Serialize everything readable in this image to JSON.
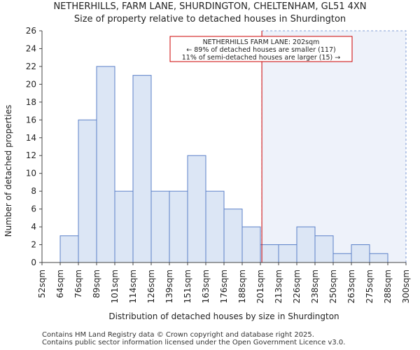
{
  "chart_data": {
    "type": "bar",
    "title": "NETHERHILLS, FARM LANE, SHURDINGTON, CHELTENHAM, GL51 4XN",
    "subtitle": "Size of property relative to detached houses in Shurdington",
    "xlabel": "Distribution of detached houses by size in Shurdington",
    "ylabel": "Number of detached properties",
    "x_tick_labels": [
      "52sqm",
      "64sqm",
      "76sqm",
      "89sqm",
      "101sqm",
      "114sqm",
      "126sqm",
      "139sqm",
      "151sqm",
      "163sqm",
      "176sqm",
      "188sqm",
      "201sqm",
      "213sqm",
      "226sqm",
      "238sqm",
      "250sqm",
      "263sqm",
      "275sqm",
      "288sqm",
      "300sqm"
    ],
    "values": [
      0,
      3,
      16,
      22,
      8,
      21,
      8,
      8,
      12,
      8,
      6,
      4,
      2,
      2,
      4,
      3,
      1,
      2,
      1,
      0
    ],
    "ylim": [
      0,
      26
    ],
    "y_ticks": [
      0,
      2,
      4,
      6,
      8,
      10,
      12,
      14,
      16,
      18,
      20,
      22,
      24,
      26
    ],
    "property_size_sqm": 202,
    "property_bin_position": 12.08,
    "annotation": [
      "NETHERHILLS FARM LANE: 202sqm",
      "← 89% of detached houses are smaller (117)",
      "11% of semi-detached houses are larger (15) →"
    ],
    "colors": {
      "bar_fill": "#dce6f5",
      "bar_edge": "#5b80c8",
      "highlight_fill": "#eef2fa",
      "marker_line": "#cc0000",
      "annotation_border": "#cc0000"
    }
  },
  "footer": {
    "line1": "Contains HM Land Registry data © Crown copyright and database right 2025.",
    "line2": "Contains public sector information licensed under the Open Government Licence v3.0."
  }
}
